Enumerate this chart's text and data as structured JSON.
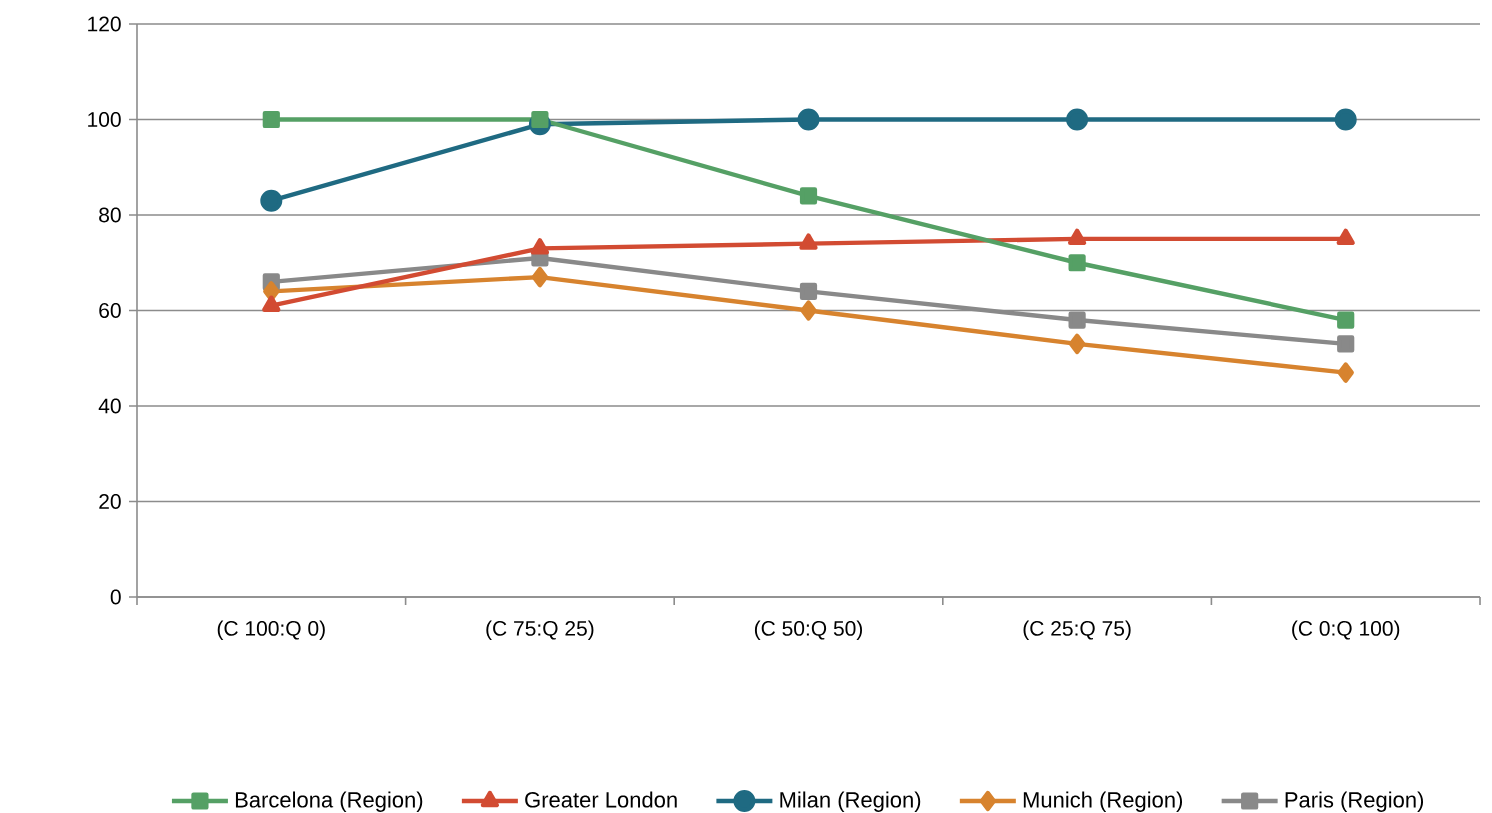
{
  "chart_data": {
    "type": "line",
    "categories": [
      "(C 100:Q 0)",
      "(C 75:Q 25)",
      "(C 50:Q 50)",
      "(C 25:Q 75)",
      "(C 0:Q 100)"
    ],
    "series": [
      {
        "name": "Barcelona (Region)",
        "color": "#55a065",
        "marker": "square",
        "values": [
          100,
          100,
          84,
          70,
          58
        ]
      },
      {
        "name": "Greater London",
        "color": "#d24b32",
        "marker": "triangle",
        "values": [
          61,
          73,
          74,
          75,
          75
        ]
      },
      {
        "name": "Milan (Region)",
        "color": "#1f6a82",
        "marker": "circle",
        "values": [
          83,
          99,
          100,
          100,
          100
        ]
      },
      {
        "name": "Munich (Region)",
        "color": "#d7832e",
        "marker": "diamond",
        "values": [
          64,
          67,
          60,
          53,
          47
        ]
      },
      {
        "name": "Paris (Region)",
        "color": "#898989",
        "marker": "square",
        "values": [
          66,
          71,
          64,
          58,
          53
        ]
      }
    ],
    "ylim": [
      0,
      120
    ],
    "yticks": [
      0,
      20,
      40,
      60,
      80,
      100,
      120
    ],
    "grid": "y",
    "legend": "bottom",
    "line_style": "solid"
  }
}
